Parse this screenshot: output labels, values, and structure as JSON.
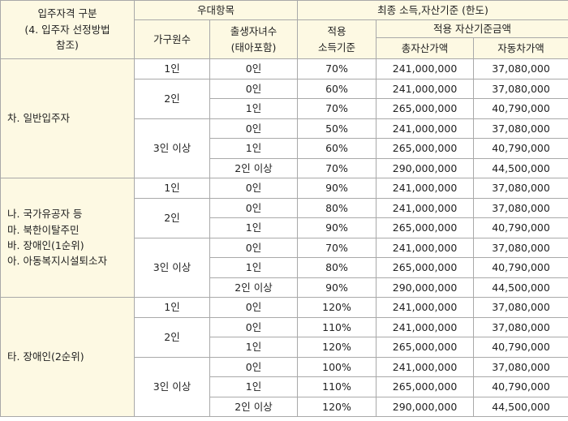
{
  "header": {
    "category": [
      "입주자격 구분",
      "(4. 입주자 선정방법",
      "참조)"
    ],
    "preference": "우대항목",
    "household": "가구원수",
    "children": [
      "출생자녀수",
      "(태아포함)"
    ],
    "final": "최종 소득,자산기준 (한도)",
    "income": [
      "적용",
      "소득기준"
    ],
    "asset": "적용 자산기준금액",
    "total_asset": "총자산가액",
    "car": "자동차가액"
  },
  "groups": [
    {
      "label": [
        "차. 일반입주자"
      ],
      "households": [
        {
          "size": "1인",
          "rows": [
            [
              "0인",
              "70%",
              "241,000,000",
              "37,080,000"
            ]
          ]
        },
        {
          "size": "2인",
          "rows": [
            [
              "0인",
              "60%",
              "241,000,000",
              "37,080,000"
            ],
            [
              "1인",
              "70%",
              "265,000,000",
              "40,790,000"
            ]
          ]
        },
        {
          "size": "3인 이상",
          "rows": [
            [
              "0인",
              "50%",
              "241,000,000",
              "37,080,000"
            ],
            [
              "1인",
              "60%",
              "265,000,000",
              "40,790,000"
            ],
            [
              "2인 이상",
              "70%",
              "290,000,000",
              "44,500,000"
            ]
          ]
        }
      ]
    },
    {
      "label": [
        "나. 국가유공자 등",
        "마. 북한이탈주민",
        "바. 장애인(1순위)",
        "아. 아동복지시설퇴소자"
      ],
      "households": [
        {
          "size": "1인",
          "rows": [
            [
              "0인",
              "90%",
              "241,000,000",
              "37,080,000"
            ]
          ]
        },
        {
          "size": "2인",
          "rows": [
            [
              "0인",
              "80%",
              "241,000,000",
              "37,080,000"
            ],
            [
              "1인",
              "90%",
              "265,000,000",
              "40,790,000"
            ]
          ]
        },
        {
          "size": "3인 이상",
          "rows": [
            [
              "0인",
              "70%",
              "241,000,000",
              "37,080,000"
            ],
            [
              "1인",
              "80%",
              "265,000,000",
              "40,790,000"
            ],
            [
              "2인 이상",
              "90%",
              "290,000,000",
              "44,500,000"
            ]
          ]
        }
      ]
    },
    {
      "label": [
        "타. 장애인(2순위)"
      ],
      "households": [
        {
          "size": "1인",
          "rows": [
            [
              "0인",
              "120%",
              "241,000,000",
              "37,080,000"
            ]
          ]
        },
        {
          "size": "2인",
          "rows": [
            [
              "0인",
              "110%",
              "241,000,000",
              "37,080,000"
            ],
            [
              "1인",
              "120%",
              "265,000,000",
              "40,790,000"
            ]
          ]
        },
        {
          "size": "3인 이상",
          "rows": [
            [
              "0인",
              "100%",
              "241,000,000",
              "37,080,000"
            ],
            [
              "1인",
              "110%",
              "265,000,000",
              "40,790,000"
            ],
            [
              "2인 이상",
              "120%",
              "290,000,000",
              "44,500,000"
            ]
          ]
        }
      ]
    }
  ]
}
